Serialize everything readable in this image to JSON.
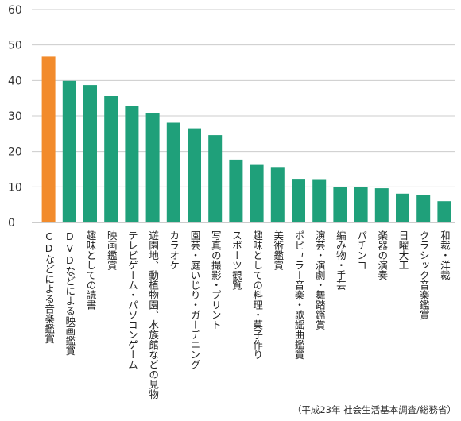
{
  "chart_data": {
    "type": "bar",
    "categories": [
      "CDなどによる音楽鑑賞",
      "DVDなどによる映画鑑賞",
      "趣味としての読書",
      "映画鑑賞",
      "テレビゲーム・パソコンゲーム",
      "遊園地、動植物園、水族館などの見物",
      "カラオケ",
      "園芸・庭いじり・ガーデニング",
      "写真の撮影・プリント",
      "スポーツ観覧",
      "趣味としての料理・菓子作り",
      "美術鑑賞",
      "ポピュラー音楽・歌謡曲鑑賞",
      "演芸・演劇・舞踏鑑賞",
      "編み物・手芸",
      "パチンコ",
      "楽器の演奏",
      "日曜大工",
      "クラシック音楽鑑賞",
      "和裁・洋裁"
    ],
    "values": [
      46.7,
      39.9,
      38.7,
      35.6,
      32.8,
      30.9,
      28.1,
      26.5,
      24.6,
      17.7,
      16.2,
      15.6,
      12.3,
      12.2,
      10.0,
      9.9,
      9.6,
      8.1,
      7.7,
      6.0
    ],
    "highlight_index": 0,
    "colors": {
      "highlight": "#F28B2C",
      "default": "#1FA07A",
      "grid": "#cccccc",
      "axis": "#999999"
    },
    "ylim": [
      0,
      60
    ],
    "yticks": [
      0,
      10,
      20,
      30,
      40,
      50,
      60
    ],
    "grid": true,
    "title": "",
    "xlabel": "",
    "ylabel": ""
  },
  "source_note": "（平成23年 社会生活基本調査/総務省）"
}
